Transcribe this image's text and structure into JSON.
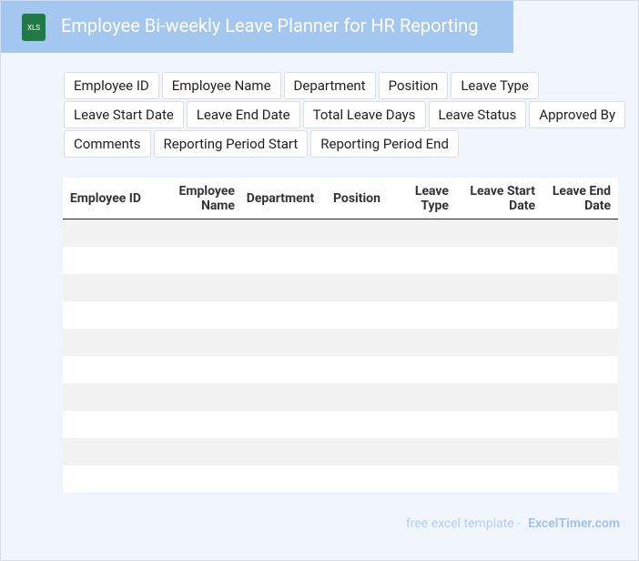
{
  "header": {
    "icon": "XLS",
    "title": "Employee Bi-weekly Leave Planner for HR Reporting"
  },
  "tags": [
    "Employee ID",
    "Employee Name",
    "Department",
    "Position",
    "Leave Type",
    "Leave Start Date",
    "Leave End Date",
    "Total Leave Days",
    "Leave Status",
    "Approved By",
    "Comments",
    "Reporting Period Start",
    "Reporting Period End"
  ],
  "table": {
    "columns": [
      "Employee ID",
      "Employee Name",
      "Department",
      "Position",
      "Leave Type",
      "Leave Start Date",
      "Leave End Date"
    ]
  },
  "footer": {
    "text": "free excel template -",
    "brand": "ExcelTimer.com"
  }
}
